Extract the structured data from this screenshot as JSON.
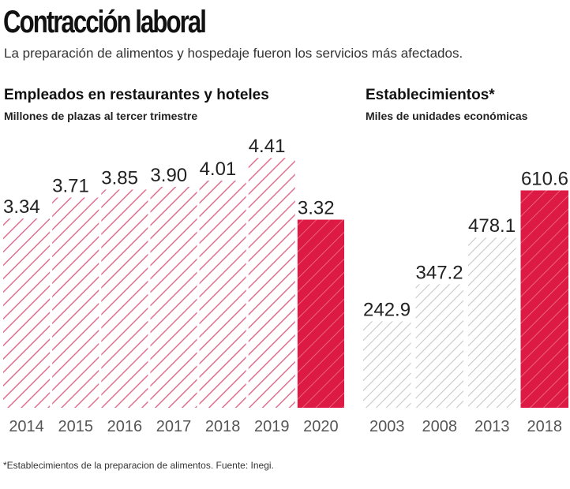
{
  "header": {
    "title": "Contracción laboral",
    "subtitle": "La preparación de alimentos y hospedaje fueron los servicios más afectados."
  },
  "colors": {
    "accent": "#dc1a43",
    "hatch_pink": "#e07090",
    "hatch_gray": "#c8c8c8",
    "text": "#222222"
  },
  "chart_data": [
    {
      "type": "bar",
      "title": "Empleados en restaurantes y hoteles",
      "subtitle": "Millones de plazas al tercer trimestre",
      "categories": [
        "2014",
        "2015",
        "2016",
        "2017",
        "2018",
        "2019",
        "2020"
      ],
      "values": [
        3.34,
        3.71,
        3.85,
        3.9,
        4.01,
        4.41,
        3.32
      ],
      "value_labels": [
        "3.34",
        "3.71",
        "3.85",
        "3.90",
        "4.01",
        "4.41",
        "3.32"
      ],
      "highlight": [
        false,
        false,
        false,
        false,
        false,
        false,
        true
      ],
      "xlabel": "",
      "ylabel": "",
      "ylim": [
        0,
        4.9
      ],
      "grid": false
    },
    {
      "type": "bar",
      "title": "Establecimientos*",
      "subtitle": "Miles de unidades económicas",
      "categories": [
        "2003",
        "2008",
        "2013",
        "2018"
      ],
      "values": [
        242.9,
        347.2,
        478.1,
        610.6
      ],
      "value_labels": [
        "242.9",
        "347.2",
        "478.1",
        "610.6"
      ],
      "highlight": [
        false,
        false,
        false,
        true
      ],
      "xlabel": "",
      "ylabel": "",
      "ylim": [
        0,
        780
      ],
      "grid": false
    }
  ],
  "footnote": "*Establecimientos de la preparacion de alimentos. Fuente: Inegi."
}
